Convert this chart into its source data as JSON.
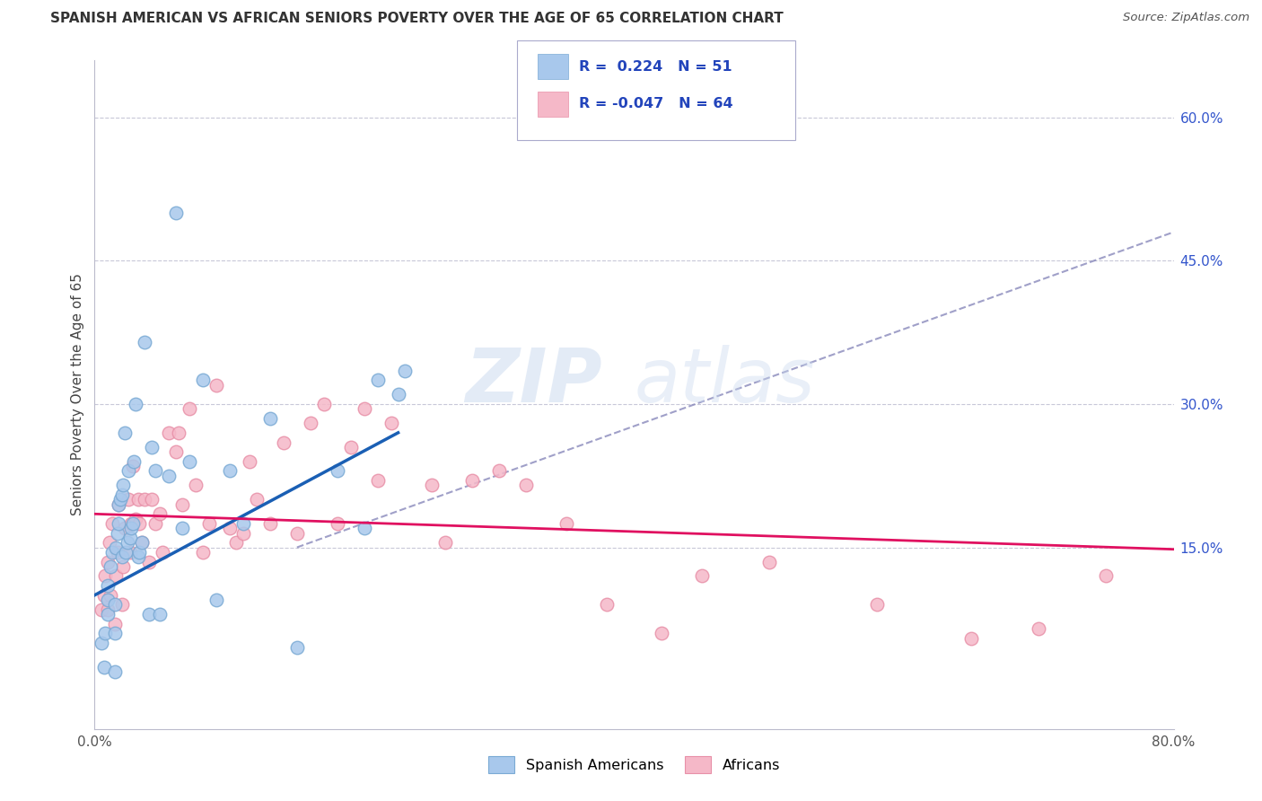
{
  "title": "SPANISH AMERICAN VS AFRICAN SENIORS POVERTY OVER THE AGE OF 65 CORRELATION CHART",
  "source": "Source: ZipAtlas.com",
  "ylabel": "Seniors Poverty Over the Age of 65",
  "xlim": [
    0.0,
    0.8
  ],
  "ylim": [
    -0.04,
    0.66
  ],
  "blue_color": "#a8c8ec",
  "blue_edge_color": "#7aaad4",
  "pink_color": "#f5b8c8",
  "pink_edge_color": "#e890a8",
  "blue_line_color": "#1a5fb4",
  "pink_line_color": "#e01060",
  "dashed_line_color": "#8888bb",
  "watermark": "ZIPatlas",
  "sa_x": [
    0.005,
    0.007,
    0.008,
    0.01,
    0.01,
    0.01,
    0.012,
    0.013,
    0.015,
    0.015,
    0.015,
    0.016,
    0.017,
    0.018,
    0.018,
    0.019,
    0.02,
    0.02,
    0.021,
    0.022,
    0.023,
    0.024,
    0.025,
    0.026,
    0.027,
    0.028,
    0.029,
    0.03,
    0.032,
    0.033,
    0.035,
    0.037,
    0.04,
    0.042,
    0.045,
    0.048,
    0.055,
    0.06,
    0.065,
    0.07,
    0.08,
    0.09,
    0.1,
    0.11,
    0.13,
    0.15,
    0.18,
    0.2,
    0.21,
    0.225,
    0.23
  ],
  "sa_y": [
    0.05,
    0.025,
    0.06,
    0.08,
    0.095,
    0.11,
    0.13,
    0.145,
    0.02,
    0.06,
    0.09,
    0.15,
    0.165,
    0.175,
    0.195,
    0.2,
    0.14,
    0.205,
    0.215,
    0.27,
    0.145,
    0.155,
    0.23,
    0.16,
    0.17,
    0.175,
    0.24,
    0.3,
    0.14,
    0.145,
    0.155,
    0.365,
    0.08,
    0.255,
    0.23,
    0.08,
    0.225,
    0.5,
    0.17,
    0.24,
    0.325,
    0.095,
    0.23,
    0.175,
    0.285,
    0.045,
    0.23,
    0.17,
    0.325,
    0.31,
    0.335
  ],
  "af_x": [
    0.005,
    0.007,
    0.008,
    0.01,
    0.01,
    0.011,
    0.012,
    0.013,
    0.015,
    0.016,
    0.017,
    0.018,
    0.02,
    0.021,
    0.022,
    0.025,
    0.026,
    0.027,
    0.028,
    0.03,
    0.032,
    0.033,
    0.035,
    0.037,
    0.04,
    0.042,
    0.045,
    0.048,
    0.05,
    0.055,
    0.06,
    0.062,
    0.065,
    0.07,
    0.075,
    0.08,
    0.085,
    0.09,
    0.1,
    0.105,
    0.11,
    0.115,
    0.12,
    0.13,
    0.14,
    0.15,
    0.16,
    0.17,
    0.18,
    0.19,
    0.2,
    0.21,
    0.22,
    0.25,
    0.26,
    0.28,
    0.3,
    0.32,
    0.35,
    0.38,
    0.42,
    0.45,
    0.5,
    0.58,
    0.65,
    0.7,
    0.75
  ],
  "af_y": [
    0.085,
    0.1,
    0.12,
    0.085,
    0.135,
    0.155,
    0.1,
    0.175,
    0.07,
    0.12,
    0.145,
    0.195,
    0.09,
    0.13,
    0.17,
    0.2,
    0.145,
    0.175,
    0.235,
    0.18,
    0.2,
    0.175,
    0.155,
    0.2,
    0.135,
    0.2,
    0.175,
    0.185,
    0.145,
    0.27,
    0.25,
    0.27,
    0.195,
    0.295,
    0.215,
    0.145,
    0.175,
    0.32,
    0.17,
    0.155,
    0.165,
    0.24,
    0.2,
    0.175,
    0.26,
    0.165,
    0.28,
    0.3,
    0.175,
    0.255,
    0.295,
    0.22,
    0.28,
    0.215,
    0.155,
    0.22,
    0.23,
    0.215,
    0.175,
    0.09,
    0.06,
    0.12,
    0.135,
    0.09,
    0.055,
    0.065,
    0.12
  ],
  "blue_line_x": [
    0.0,
    0.225
  ],
  "blue_line_y": [
    0.1,
    0.27
  ],
  "pink_line_x": [
    0.0,
    0.8
  ],
  "pink_line_y": [
    0.185,
    0.148
  ],
  "dash_line_x": [
    0.15,
    0.8
  ],
  "dash_line_y": [
    0.15,
    0.48
  ]
}
